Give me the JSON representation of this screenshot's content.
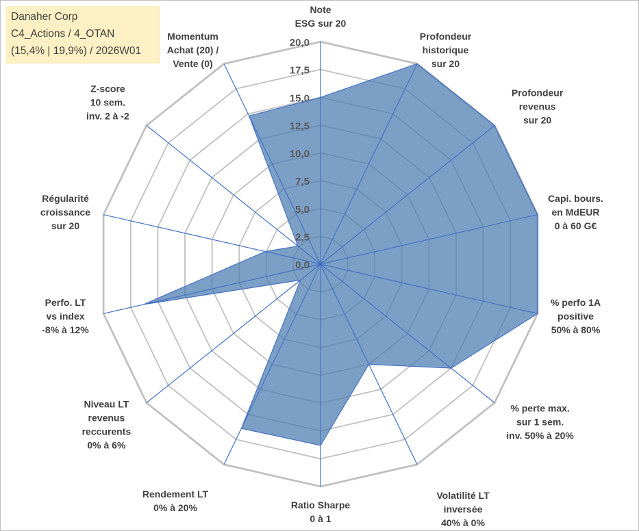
{
  "title_box": {
    "line1": "Danaher Corp",
    "line2": "C4_Actions / 4_OTAN",
    "line3": "(15,4% | 19,9%) / 2026W01",
    "background": "#fdf0c4"
  },
  "chart_data": {
    "type": "radar",
    "title": "Danaher Corp",
    "rmin": 0,
    "rmax": 20,
    "ticks": [
      "0,0",
      "2,5",
      "5,0",
      "7,5",
      "10,0",
      "12,5",
      "15,0",
      "17,5",
      "20,0"
    ],
    "tick_values": [
      0,
      2.5,
      5,
      7.5,
      10,
      12.5,
      15,
      17.5,
      20
    ],
    "axes": [
      {
        "label": [
          "Note",
          "ESG sur 20"
        ],
        "value": 15.0
      },
      {
        "label": [
          "Profondeur",
          "historique",
          "sur 20"
        ],
        "value": 20.0
      },
      {
        "label": [
          "Profondeur",
          "revenus",
          "sur 20"
        ],
        "value": 20.0
      },
      {
        "label": [
          "Capi. bours.",
          "en MdEUR",
          "0 à 60 G€"
        ],
        "value": 20.0
      },
      {
        "label": [
          "% perfo 1A",
          "positive",
          "50% à 80%"
        ],
        "value": 20.0
      },
      {
        "label": [
          "% perte max.",
          "sur 1 sem.",
          "inv. 50% à 20%"
        ],
        "value": 15.0
      },
      {
        "label": [
          "Volatilité LT",
          "inversée",
          "40% à 0%"
        ],
        "value": 10.0
      },
      {
        "label": [
          "Ratio Sharpe",
          "0 à 1"
        ],
        "value": 16.3
      },
      {
        "label": [
          "Rendement LT",
          "0% à 20%"
        ],
        "value": 16.4
      },
      {
        "label": [
          "Niveau LT",
          "revenus",
          "reccurents",
          "0% à 6%"
        ],
        "value": 2.3
      },
      {
        "label": [
          "Perfo. LT",
          "vs index",
          "-8% à 12%"
        ],
        "value": 16.3
      },
      {
        "label": [
          "Régularité",
          "croissance",
          "sur 20"
        ],
        "value": 5.1
      },
      {
        "label": [
          "Z-score",
          "10 sem.",
          "inv. 2 à -2"
        ],
        "value": 2.6
      },
      {
        "label": [
          "Momentum",
          "Achat (20) /",
          "Vente (0)"
        ],
        "value": 14.8
      }
    ],
    "series": [
      {
        "name": "Danaher Corp",
        "fill": "#4a7ab0",
        "stroke": "#4472c4"
      }
    ],
    "colors": {
      "grid": "#c0c0c0",
      "spoke": "#4472c4",
      "fill": "#4a7ab0",
      "text": "#404040"
    }
  }
}
